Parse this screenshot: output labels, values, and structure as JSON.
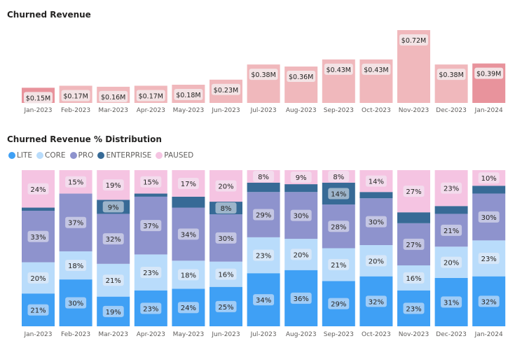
{
  "chart_data": [
    {
      "type": "bar",
      "title": "Churned Revenue",
      "categories": [
        "Jan-2023",
        "Feb-2023",
        "Mar-2023",
        "Apr-2023",
        "May-2023",
        "Jun-2023",
        "Jul-2023",
        "Aug-2023",
        "Sep-2023",
        "Oct-2023",
        "Nov-2023",
        "Dec-2023",
        "Jan-2024"
      ],
      "values": [
        0.15,
        0.17,
        0.16,
        0.17,
        0.18,
        0.23,
        0.38,
        0.36,
        0.43,
        0.43,
        0.72,
        0.38,
        0.39
      ],
      "labels": [
        "$0.15M",
        "$0.17M",
        "$0.16M",
        "$0.17M",
        "$0.18M",
        "$0.23M",
        "$0.38M",
        "$0.36M",
        "$0.43M",
        "$0.43M",
        "$0.72M",
        "$0.38M",
        "$0.39M"
      ],
      "unit": "$M",
      "ylim": [
        0,
        0.72
      ],
      "colors": {
        "bar": "#f0b8bc",
        "highlight": "#e8939c"
      },
      "highlighted": [
        "Jan-2023",
        "Jan-2024"
      ]
    },
    {
      "type": "bar",
      "stacked": "percent",
      "title": "Churned Revenue % Distribution",
      "legend_position": "top-left",
      "categories": [
        "Jan-2023",
        "Feb-2023",
        "Mar-2023",
        "Apr-2023",
        "May-2023",
        "Jun-2023",
        "Jul-2023",
        "Aug-2023",
        "Sep-2023",
        "Oct-2023",
        "Nov-2023",
        "Dec-2023",
        "Jan-2024"
      ],
      "series": [
        {
          "name": "LITE",
          "color": "#3fa0f5",
          "values": [
            21,
            30,
            19,
            23,
            24,
            25,
            34,
            36,
            29,
            32,
            23,
            31,
            32
          ]
        },
        {
          "name": "CORE",
          "color": "#b9dcfb",
          "values": [
            20,
            18,
            21,
            23,
            18,
            16,
            23,
            20,
            21,
            20,
            16,
            20,
            23
          ]
        },
        {
          "name": "PRO",
          "color": "#8e93cd",
          "values": [
            33,
            37,
            32,
            37,
            34,
            30,
            29,
            30,
            28,
            30,
            27,
            21,
            30
          ]
        },
        {
          "name": "ENTERPRISE",
          "color": "#376a96",
          "values": [
            2,
            0,
            9,
            2,
            7,
            8,
            6,
            5,
            14,
            4,
            7,
            5,
            5
          ]
        },
        {
          "name": "PAUSED",
          "color": "#f5c4e2",
          "values": [
            24,
            15,
            19,
            15,
            17,
            20,
            8,
            9,
            8,
            14,
            27,
            23,
            10
          ]
        }
      ],
      "ylim": [
        0,
        100
      ]
    }
  ]
}
